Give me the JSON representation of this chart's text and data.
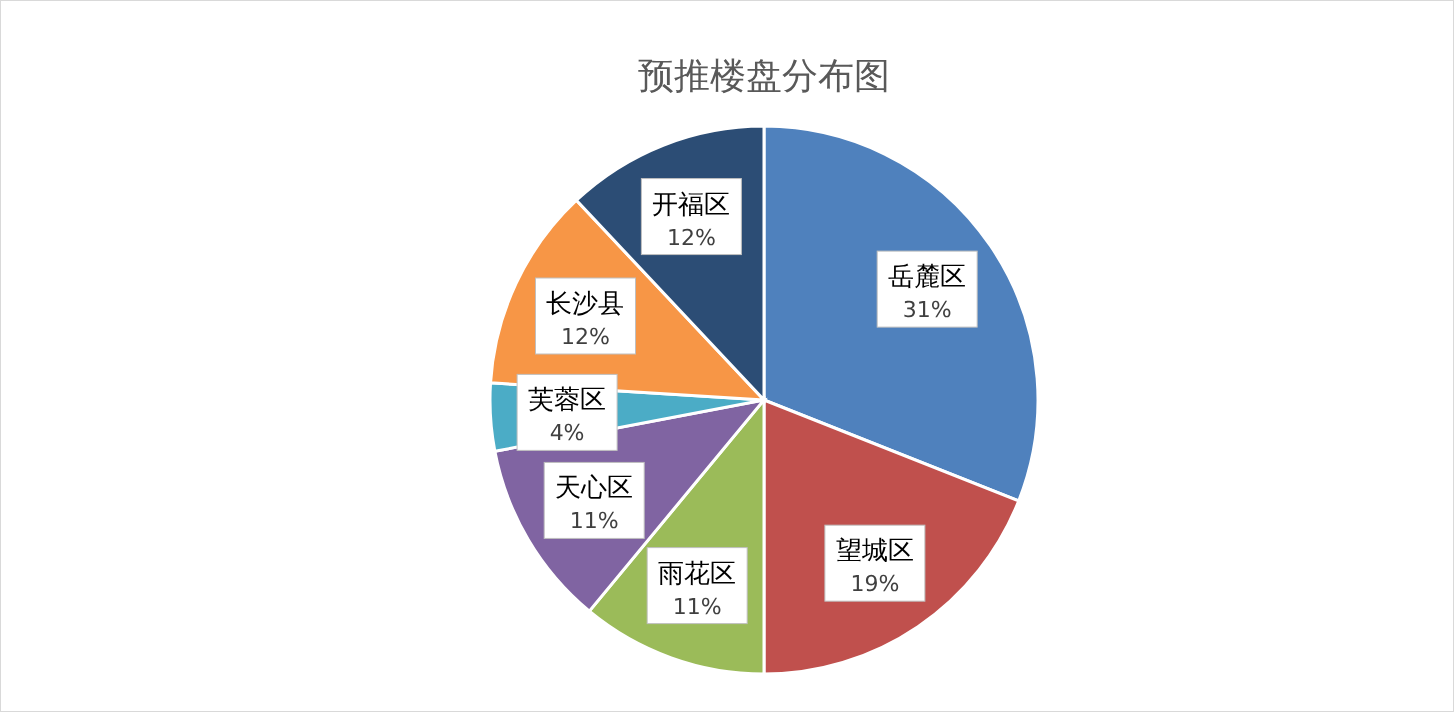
{
  "chart_data": {
    "type": "pie",
    "title": "预推楼盘分布图",
    "categories": [
      "岳麓区",
      "望城区",
      "雨花区",
      "天心区",
      "芙蓉区",
      "长沙县",
      "开福区"
    ],
    "values": [
      31,
      19,
      11,
      11,
      4,
      12,
      12
    ],
    "value_labels": [
      "31%",
      "19%",
      "11%",
      "11%",
      "4%",
      "12%",
      "12%"
    ],
    "colors": [
      "#4f81bd",
      "#c0504d",
      "#9bbb59",
      "#8064a2",
      "#4bacc6",
      "#f79646",
      "#2c4d75"
    ]
  }
}
